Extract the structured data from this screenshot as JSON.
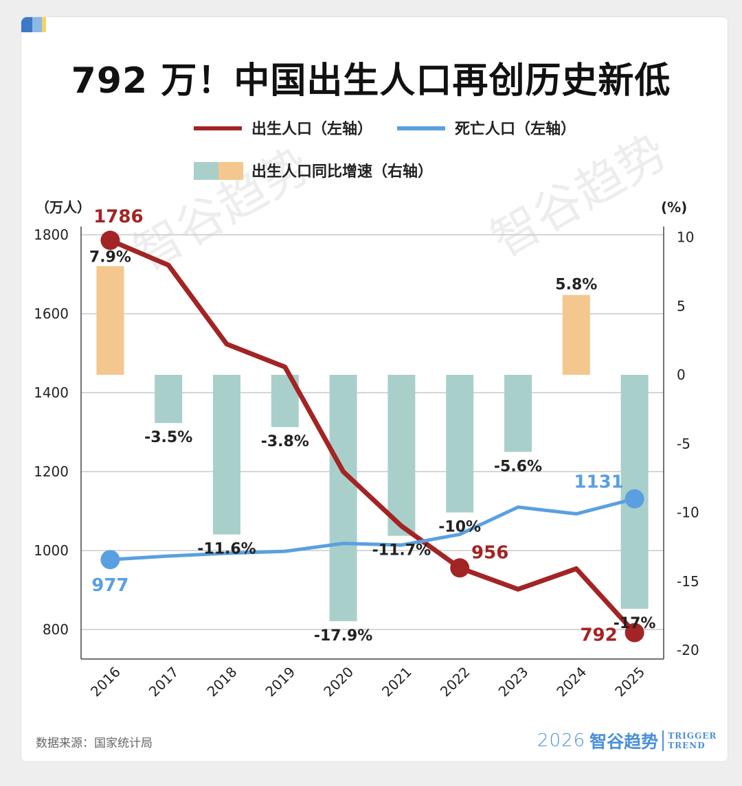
{
  "title": "792 万！中国出生人口再创历史新低",
  "legend": {
    "births": "出生人口（左轴）",
    "deaths": "死亡人口（左轴）",
    "growth": "出生人口同比增速（右轴）"
  },
  "axes": {
    "left_unit": "（万人）",
    "right_unit": "(%)"
  },
  "source": "数据来源：国家统计局",
  "brand": {
    "year": "2026",
    "name": "智谷趋势",
    "en_line1": "TRIGGER",
    "en_line2": "TREND"
  },
  "watermark": "智谷趋势",
  "colors": {
    "births": "#a32424",
    "deaths": "#5aa0e0",
    "bar_negative": "#a9cfcb",
    "bar_positive": "#f3c78d",
    "grid": "#c8c8c8"
  },
  "chart_data": {
    "type": "bar+line",
    "categories": [
      "2016",
      "2017",
      "2018",
      "2019",
      "2020",
      "2021",
      "2022",
      "2023",
      "2024",
      "2025"
    ],
    "left_axis": {
      "ylim": [
        770,
        1830
      ],
      "ticks": [
        800,
        1000,
        1200,
        1400,
        1600,
        1800
      ]
    },
    "right_axis": {
      "ylim": [
        -20,
        10
      ],
      "ticks": [
        10,
        5,
        0,
        -5,
        -10,
        -15,
        -20
      ]
    },
    "series": [
      {
        "name": "出生人口（左轴）",
        "kind": "line",
        "axis": "left",
        "values": [
          1786,
          1723,
          1523,
          1465,
          1200,
          1062,
          956,
          902,
          954,
          792
        ],
        "labels": {
          "0": "1786",
          "6": "956",
          "9": "792"
        }
      },
      {
        "name": "死亡人口（左轴）",
        "kind": "line",
        "axis": "left",
        "values": [
          977,
          986,
          993,
          998,
          1018,
          1014,
          1041,
          1110,
          1093,
          1131
        ],
        "labels": {
          "0": "977",
          "9": "1131"
        }
      },
      {
        "name": "出生人口同比增速（右轴）",
        "kind": "bar",
        "axis": "right",
        "values": [
          7.9,
          -3.5,
          -11.6,
          -3.8,
          -17.9,
          -11.7,
          -10,
          -5.6,
          5.8,
          -17
        ],
        "labels": [
          "7.9%",
          "-3.5%",
          "-11.6%",
          "-3.8%",
          "-17.9%",
          "-11.7%",
          "-10%",
          "-5.6%",
          "5.8%",
          "-17%"
        ]
      }
    ]
  }
}
